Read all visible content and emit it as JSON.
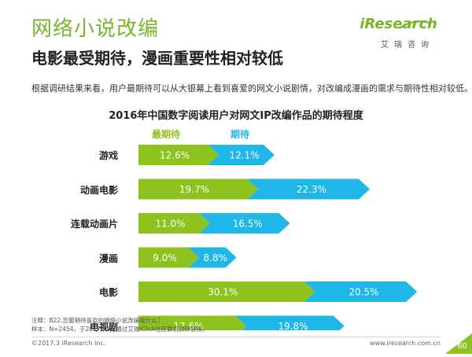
{
  "header": {
    "title": "网络小说改编",
    "subtitle": "电影最受期待，漫画重要性相对较低",
    "description": "根据调研结果来看，用户最期待可以从大银幕上看到喜爱的网文小说剧情，对改编成漫画的需求与期待性相对较低。"
  },
  "logo": {
    "brand": "iResearch",
    "brand_cn": "艾瑞咨询"
  },
  "colors": {
    "accent_green": "#8dc21f",
    "accent_blue": "#1fb6e8",
    "title_green": "#7ab42c"
  },
  "chart_data": {
    "type": "bar",
    "orientation": "horizontal-stacked",
    "title": "2016年中国数字阅读用户对网文IP改编作品的期待程度",
    "categories": [
      "游戏",
      "动画电影",
      "连载动画片",
      "漫画",
      "电影",
      "电视剧"
    ],
    "series": [
      {
        "name": "最期待",
        "values": [
          12.6,
          19.7,
          11.0,
          9.0,
          30.1,
          17.6
        ],
        "labels": [
          "12.6%",
          "19.7%",
          "11.0%",
          "9.0%",
          "30.1%",
          "17.6%"
        ]
      },
      {
        "name": "期待",
        "values": [
          12.1,
          22.3,
          16.5,
          8.8,
          20.5,
          19.8
        ],
        "labels": [
          "12.1%",
          "22.3%",
          "16.5%",
          "8.8%",
          "20.5%",
          "19.8%"
        ]
      }
    ],
    "legend": "top",
    "grid": false,
    "unit": "%"
  },
  "footer": {
    "note_line1": "注释：B22.您最期待喜欢的网络小说改编成什么？",
    "note_line2": "样本：N=2454，于2017年1月通过艾瑞iClick社区联机调研获得。",
    "copyright": "©2017.3 iResearch Inc.",
    "website": "www.iresearch.com.cn",
    "page_number": "60"
  }
}
